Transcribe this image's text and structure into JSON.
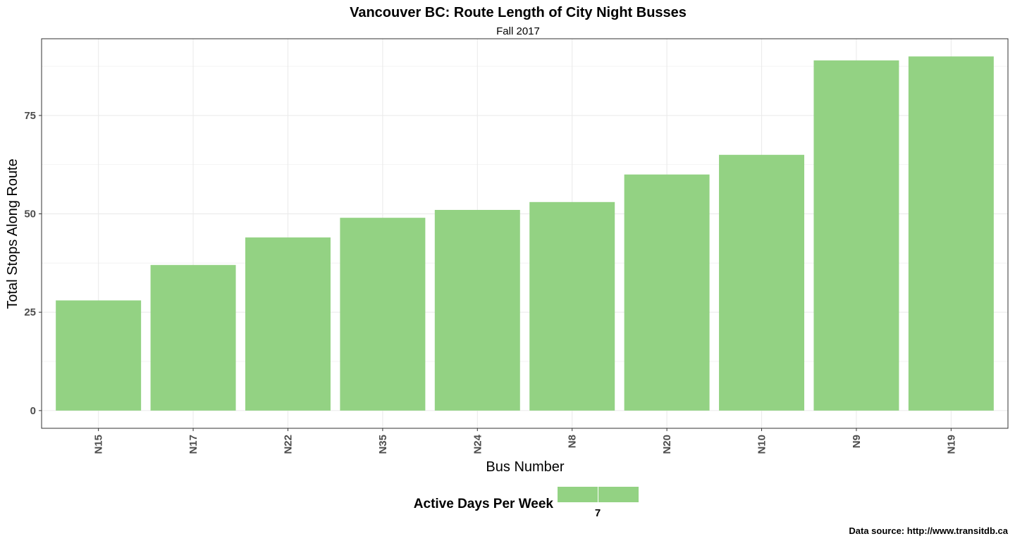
{
  "chart_data": {
    "type": "bar",
    "title": "Vancouver BC: Route Length of City Night Busses",
    "subtitle": "Fall 2017",
    "xlabel": "Bus Number",
    "ylabel": "Total Stops Along Route",
    "categories": [
      "N15",
      "N17",
      "N22",
      "N35",
      "N24",
      "N8",
      "N20",
      "N10",
      "N9",
      "N19"
    ],
    "values": [
      28,
      37,
      44,
      49,
      51,
      53,
      60,
      65,
      89,
      90
    ],
    "yticks": [
      "0",
      "25",
      "50",
      "75"
    ],
    "ylim": [
      -4.5,
      94.5
    ],
    "grid": true,
    "bar_color": "#93d283",
    "grid_color": "#ebebeb",
    "tick_text_color": "#4d4d4d",
    "legend": {
      "title": "Active Days Per Week",
      "labels": [
        "7"
      ],
      "position": "bottom"
    },
    "caption": "Data source: http://www.transitdb.ca"
  }
}
